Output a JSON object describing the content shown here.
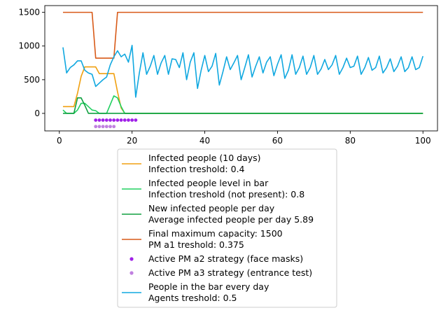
{
  "chart_data": {
    "type": "line",
    "title": "",
    "xlabel": "",
    "ylabel": "",
    "xlim": [
      -4,
      104
    ],
    "ylim": [
      -260,
      1600
    ],
    "x_ticks": [
      0,
      20,
      40,
      60,
      80,
      100
    ],
    "y_ticks": [
      0,
      500,
      1000,
      1500
    ],
    "grid": false,
    "legend_position": "below",
    "series": [
      {
        "name": "Infected people (10 days)\nInfection treshold: 0.4",
        "color": "#f0a010",
        "kind": "line",
        "x": [
          1,
          2,
          3,
          4,
          5,
          6,
          7,
          8,
          9,
          10,
          11,
          12,
          13,
          14,
          15,
          16,
          17,
          18,
          19,
          20,
          21,
          22,
          23,
          24,
          25,
          26,
          27,
          28,
          29,
          30,
          31,
          32,
          33,
          34,
          35,
          36,
          37,
          38,
          39,
          40,
          41,
          42,
          43,
          44,
          45,
          46,
          47,
          48,
          49,
          50,
          51,
          52,
          53,
          54,
          55,
          56,
          57,
          58,
          59,
          60,
          61,
          62,
          63,
          64,
          65,
          66,
          67,
          68,
          69,
          70,
          71,
          72,
          73,
          74,
          75,
          76,
          77,
          78,
          79,
          80,
          81,
          82,
          83,
          84,
          85,
          86,
          87,
          88,
          89,
          90,
          91,
          92,
          93,
          94,
          95,
          96,
          97,
          98,
          99,
          100
        ],
        "y": [
          100,
          100,
          100,
          100,
          300,
          550,
          690,
          690,
          690,
          690,
          590,
          590,
          590,
          590,
          590,
          320,
          80,
          0,
          0,
          0,
          0,
          0,
          0,
          0,
          0,
          0,
          0,
          0,
          0,
          0,
          0,
          0,
          0,
          0,
          0,
          0,
          0,
          0,
          0,
          0,
          0,
          0,
          0,
          0,
          0,
          0,
          0,
          0,
          0,
          0,
          0,
          0,
          0,
          0,
          0,
          0,
          0,
          0,
          0,
          0,
          0,
          0,
          0,
          0,
          0,
          0,
          0,
          0,
          0,
          0,
          0,
          0,
          0,
          0,
          0,
          0,
          0,
          0,
          0,
          0,
          0,
          0,
          0,
          0,
          0,
          0,
          0,
          0,
          0,
          0,
          0,
          0,
          0,
          0,
          0,
          0,
          0,
          0,
          0,
          0
        ]
      },
      {
        "name": "Infected people level in bar\nInfection treshold (not present): 0.8",
        "color": "#20d060",
        "kind": "line",
        "x": [
          1,
          2,
          3,
          4,
          5,
          6,
          7,
          8,
          9,
          10,
          11,
          12,
          13,
          14,
          15,
          16,
          17,
          18,
          19,
          20,
          21,
          22,
          23,
          24,
          25,
          26,
          27,
          28,
          29,
          30,
          31,
          32,
          33,
          34,
          35,
          36,
          37,
          38,
          39,
          40,
          41,
          42,
          43,
          44,
          45,
          46,
          47,
          48,
          49,
          50,
          51,
          52,
          53,
          54,
          55,
          56,
          57,
          58,
          59,
          60,
          61,
          62,
          63,
          64,
          65,
          66,
          67,
          68,
          69,
          70,
          71,
          72,
          73,
          74,
          75,
          76,
          77,
          78,
          79,
          80,
          81,
          82,
          83,
          84,
          85,
          86,
          87,
          88,
          89,
          90,
          91,
          92,
          93,
          94,
          95,
          96,
          97,
          98,
          99,
          100
        ],
        "y": [
          50,
          0,
          0,
          0,
          50,
          150,
          150,
          100,
          50,
          40,
          0,
          0,
          0,
          130,
          260,
          230,
          100,
          0,
          0,
          0,
          0,
          0,
          0,
          0,
          0,
          0,
          0,
          0,
          0,
          0,
          0,
          0,
          0,
          0,
          0,
          0,
          0,
          0,
          0,
          0,
          0,
          0,
          0,
          0,
          0,
          0,
          0,
          0,
          0,
          0,
          0,
          0,
          0,
          0,
          0,
          0,
          0,
          0,
          0,
          0,
          0,
          0,
          0,
          0,
          0,
          0,
          0,
          0,
          0,
          0,
          0,
          0,
          0,
          0,
          0,
          0,
          0,
          0,
          0,
          0,
          0,
          0,
          0,
          0,
          0,
          0,
          0,
          0,
          0,
          0,
          0,
          0,
          0,
          0,
          0,
          0,
          0,
          0,
          0,
          0
        ]
      },
      {
        "name": "New infected people per day\nAverage infected people per day 5.89",
        "color": "#10a040",
        "kind": "line",
        "x": [
          1,
          2,
          3,
          4,
          5,
          6,
          7,
          8,
          9,
          10,
          11,
          12,
          13,
          14,
          15,
          16,
          17,
          18,
          19,
          20,
          21,
          22,
          23,
          24,
          25,
          26,
          27,
          28,
          29,
          30,
          31,
          32,
          33,
          34,
          35,
          36,
          37,
          38,
          39,
          40,
          41,
          42,
          43,
          44,
          45,
          46,
          47,
          48,
          49,
          50,
          51,
          52,
          53,
          54,
          55,
          56,
          57,
          58,
          59,
          60,
          61,
          62,
          63,
          64,
          65,
          66,
          67,
          68,
          69,
          70,
          71,
          72,
          73,
          74,
          75,
          76,
          77,
          78,
          79,
          80,
          81,
          82,
          83,
          84,
          85,
          86,
          87,
          88,
          89,
          90,
          91,
          92,
          93,
          94,
          95,
          96,
          97,
          98,
          99,
          100
        ],
        "y": [
          0,
          0,
          0,
          0,
          230,
          230,
          120,
          0,
          0,
          0,
          0,
          0,
          0,
          0,
          0,
          0,
          0,
          0,
          0,
          0,
          0,
          0,
          0,
          0,
          0,
          0,
          0,
          0,
          0,
          0,
          0,
          0,
          0,
          0,
          0,
          0,
          0,
          0,
          0,
          0,
          0,
          0,
          0,
          0,
          0,
          0,
          0,
          0,
          0,
          0,
          0,
          0,
          0,
          0,
          0,
          0,
          0,
          0,
          0,
          0,
          0,
          0,
          0,
          0,
          0,
          0,
          0,
          0,
          0,
          0,
          0,
          0,
          0,
          0,
          0,
          0,
          0,
          0,
          0,
          0,
          0,
          0,
          0,
          0,
          0,
          0,
          0,
          0,
          0,
          0,
          0,
          0,
          0,
          0,
          0,
          0,
          0,
          0,
          0,
          0
        ]
      },
      {
        "name": "Final maximum capacity: 1500\nPM a1 treshold: 0.375",
        "color": "#d85a18",
        "kind": "line",
        "x": [
          1,
          9,
          10,
          15,
          16,
          100
        ],
        "y": [
          1500,
          1500,
          820,
          820,
          1500,
          1500
        ]
      },
      {
        "name": "Active PM a2 strategy (face masks)",
        "color": "#a020e8",
        "kind": "scatter",
        "x": [
          10,
          11,
          12,
          13,
          14,
          15,
          16,
          17,
          18,
          19,
          20,
          21
        ],
        "y": [
          -100,
          -100,
          -100,
          -100,
          -100,
          -100,
          -100,
          -100,
          -100,
          -100,
          -100,
          -100
        ]
      },
      {
        "name": "Active PM a3 strategy (entrance test)",
        "color": "#c080e0",
        "kind": "scatter",
        "x": [
          10,
          11,
          12,
          13,
          14,
          15
        ],
        "y": [
          -195,
          -195,
          -195,
          -195,
          -195,
          -195
        ]
      },
      {
        "name": "People in the bar every day\nAgents treshold: 0.5",
        "color": "#10a8e0",
        "kind": "line",
        "x": [
          1,
          2,
          3,
          4,
          5,
          6,
          7,
          8,
          9,
          10,
          11,
          12,
          13,
          14,
          15,
          16,
          17,
          18,
          19,
          20,
          21,
          22,
          23,
          24,
          25,
          26,
          27,
          28,
          29,
          30,
          31,
          32,
          33,
          34,
          35,
          36,
          37,
          38,
          39,
          40,
          41,
          42,
          43,
          44,
          45,
          46,
          47,
          48,
          49,
          50,
          51,
          52,
          53,
          54,
          55,
          56,
          57,
          58,
          59,
          60,
          61,
          62,
          63,
          64,
          65,
          66,
          67,
          68,
          69,
          70,
          71,
          72,
          73,
          74,
          75,
          76,
          77,
          78,
          79,
          80,
          81,
          82,
          83,
          84,
          85,
          86,
          87,
          88,
          89,
          90,
          91,
          92,
          93,
          94,
          95,
          96,
          97,
          98,
          99,
          100
        ],
        "y": [
          980,
          600,
          680,
          720,
          780,
          780,
          640,
          600,
          580,
          400,
          450,
          500,
          540,
          720,
          840,
          930,
          840,
          880,
          760,
          1010,
          240,
          600,
          900,
          580,
          700,
          860,
          580,
          750,
          860,
          580,
          810,
          800,
          680,
          900,
          500,
          760,
          900,
          370,
          640,
          860,
          620,
          700,
          890,
          420,
          620,
          840,
          650,
          750,
          860,
          500,
          680,
          870,
          540,
          700,
          840,
          600,
          760,
          840,
          560,
          730,
          870,
          520,
          640,
          870,
          580,
          680,
          850,
          580,
          680,
          860,
          580,
          660,
          800,
          650,
          720,
          860,
          580,
          680,
          820,
          680,
          700,
          850,
          580,
          680,
          830,
          640,
          680,
          850,
          600,
          680,
          810,
          620,
          700,
          840,
          620,
          680,
          840,
          650,
          680,
          850
        ]
      }
    ]
  }
}
